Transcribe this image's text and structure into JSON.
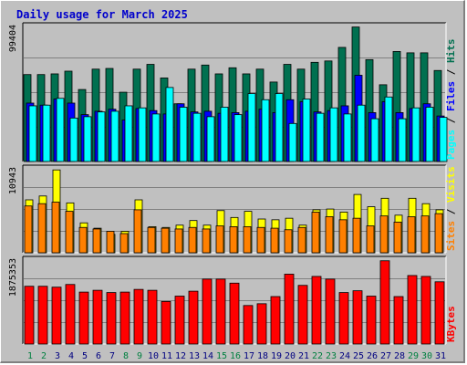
{
  "chart_data": {
    "type": "bar",
    "title": "Daily usage for March 2025",
    "days": [
      "1",
      "2",
      "3",
      "4",
      "5",
      "6",
      "7",
      "8",
      "9",
      "10",
      "11",
      "12",
      "13",
      "14",
      "15",
      "16",
      "17",
      "18",
      "19",
      "20",
      "21",
      "22",
      "23",
      "24",
      "25",
      "26",
      "27",
      "28",
      "29",
      "30",
      "31"
    ],
    "weekend_days": [
      "1",
      "2",
      "8",
      "9",
      "15",
      "16",
      "22",
      "23",
      "29",
      "30"
    ],
    "colors": {
      "hits": "#007050",
      "files": "#0000ff",
      "pages": "#00ffff",
      "visits": "#ffff00",
      "sites": "#ff8000",
      "kbytes": "#ff0000",
      "weekday_label": "#000080",
      "weekend_label": "#008040",
      "ymax_label": "#000000"
    },
    "panels": {
      "hits": {
        "ymax_label": "99404",
        "ymax": 99404,
        "side_labels": {
          "pages": "Pages",
          "files": "Files",
          "hits": "Hits",
          "sep": " / "
        },
        "series": [
          {
            "name": "Hits",
            "values": [
              64000,
              64000,
              64500,
              66500,
              53000,
              68000,
              68500,
              51000,
              68000,
              71500,
              61500,
              42500,
              68000,
              71000,
              64500,
              69000,
              64500,
              68000,
              58500,
              71500,
              68000,
              73000,
              74000,
              84000,
              99000,
              75000,
              56500,
              81000,
              80000,
              80000,
              67000
            ]
          },
          {
            "name": "Files",
            "values": [
              43000,
              41500,
              46000,
              43000,
              34500,
              37000,
              38500,
              30500,
              39000,
              37500,
              35000,
              42500,
              36500,
              37000,
              35500,
              36000,
              37000,
              38500,
              36000,
              45500,
              44000,
              36500,
              37500,
              41000,
              63500,
              36000,
              44000,
              36000,
              39000,
              42500,
              33500
            ]
          },
          {
            "name": "Pages",
            "values": [
              41000,
              41500,
              46500,
              32000,
              33000,
              36500,
              37000,
              41000,
              39500,
              35000,
              54500,
              40000,
              35500,
              33000,
              40000,
              34500,
              50000,
              45500,
              50000,
              28000,
              46000,
              35500,
              39500,
              35000,
              41500,
              31500,
              47500,
              31500,
              39500,
              40000,
              32500
            ]
          }
        ]
      },
      "visits": {
        "ymax_label": "10943",
        "ymax": 10943,
        "side_labels": {
          "sites": "Sites",
          "visits": "Visits",
          "sep": " / "
        },
        "series": [
          {
            "name": "Visits",
            "values": [
              6900,
              7400,
              10800,
              6500,
              3900,
              3200,
              2400,
              2800,
              6900,
              3400,
              3300,
              3600,
              4200,
              3600,
              5500,
              4600,
              5400,
              4400,
              4300,
              4500,
              3600,
              5600,
              5700,
              5300,
              7600,
              6000,
              7100,
              4900,
              7100,
              6400,
              5600
            ]
          },
          {
            "name": "Sites",
            "values": [
              6100,
              6400,
              6600,
              5400,
              3300,
              3100,
              2800,
              2500,
              5600,
              3300,
              3200,
              3100,
              3300,
              3100,
              3500,
              3400,
              3400,
              3300,
              3200,
              3000,
              3300,
              5300,
              4700,
              4300,
              4500,
              3500,
              4800,
              4000,
              4700,
              4800,
              5100
            ]
          }
        ]
      },
      "kbytes": {
        "ymax_label": "1875353",
        "ymax": 1875353,
        "side_label": "KBytes",
        "series": [
          {
            "name": "KBytes",
            "values": [
              1290000,
              1290000,
              1270000,
              1330000,
              1160000,
              1200000,
              1150000,
              1160000,
              1220000,
              1200000,
              950000,
              1070000,
              1180000,
              1450000,
              1450000,
              1360000,
              860000,
              900000,
              1060000,
              1560000,
              1310000,
              1510000,
              1450000,
              1150000,
              1190000,
              1070000,
              1860000,
              1060000,
              1530000,
              1510000,
              1390000
            ]
          }
        ]
      }
    }
  }
}
